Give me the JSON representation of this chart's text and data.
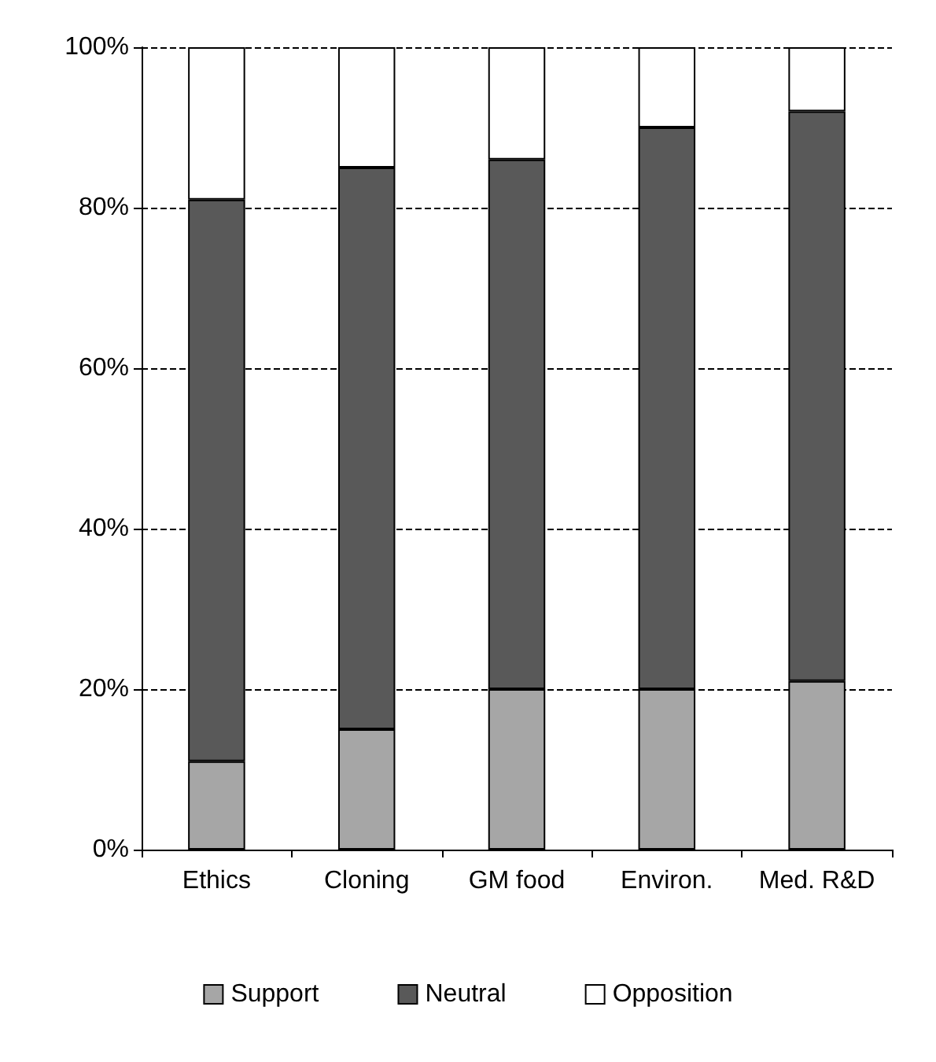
{
  "chart_data": {
    "type": "bar",
    "stacked": true,
    "categories": [
      "Ethics",
      "Cloning",
      "GM food",
      "Environ.",
      "Med. R&D"
    ],
    "series": [
      {
        "name": "Support",
        "color": "#a6a6a6",
        "values": [
          11,
          15,
          20,
          20,
          21
        ]
      },
      {
        "name": "Neutral",
        "color": "#595959",
        "values": [
          70,
          70,
          66,
          70,
          71
        ]
      },
      {
        "name": "Opposition",
        "color": "#ffffff",
        "values": [
          19,
          15,
          14,
          10,
          8
        ]
      }
    ],
    "ylim": [
      0,
      100
    ],
    "yticks": [
      {
        "value": 0,
        "label": "0%"
      },
      {
        "value": 20,
        "label": "20%"
      },
      {
        "value": 40,
        "label": "40%"
      },
      {
        "value": 60,
        "label": "60%"
      },
      {
        "value": 80,
        "label": "80%"
      },
      {
        "value": 100,
        "label": "100%"
      }
    ],
    "grid": "y",
    "legend": "bottom"
  }
}
